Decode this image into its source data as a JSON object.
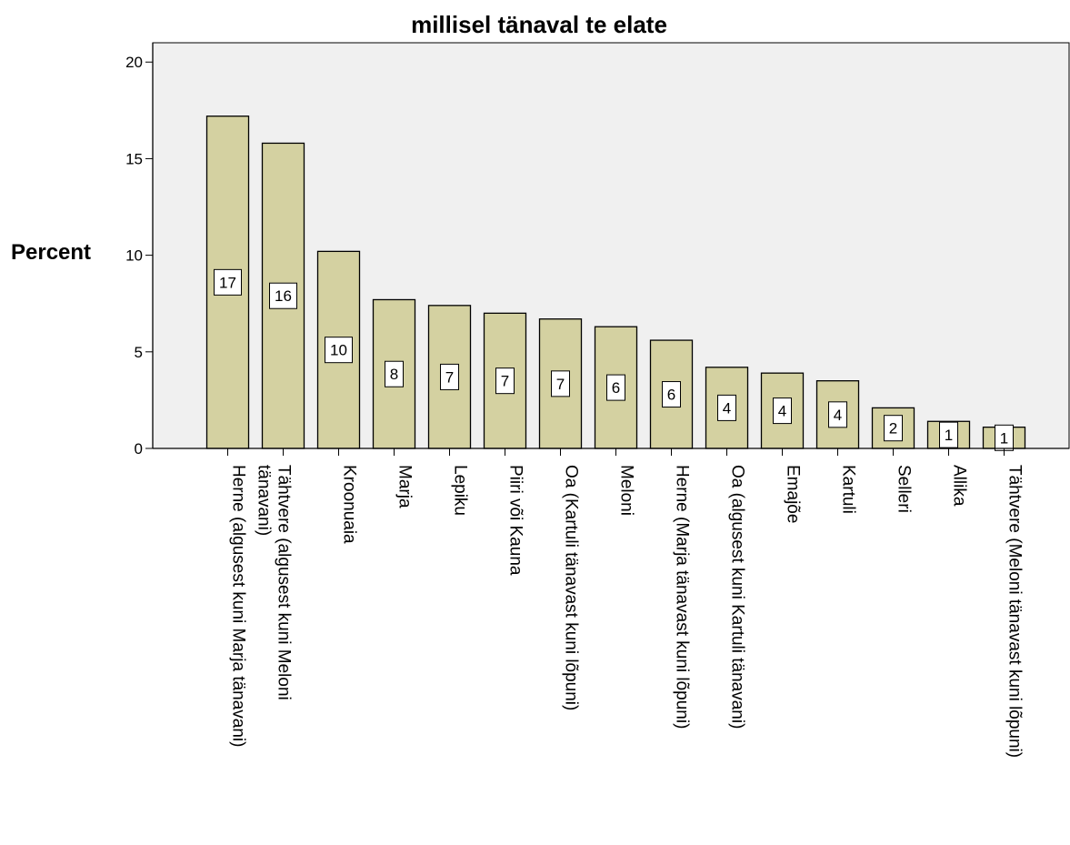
{
  "chart_data": {
    "type": "bar",
    "title": "millisel tänaval te elate",
    "xlabel": "",
    "ylabel": "Percent",
    "ylim": [
      0,
      21
    ],
    "yticks": [
      0,
      5,
      10,
      15,
      20
    ],
    "grid": false,
    "categories": [
      [
        "Herne (algusest kuni Marja tänavani)"
      ],
      [
        "Tähtvere (algusest kuni Meloni",
        "tänavani)"
      ],
      [
        "Kroonuaia"
      ],
      [
        "Marja"
      ],
      [
        "Lepiku"
      ],
      [
        "Piiri või Kauna"
      ],
      [
        "Oa (Kartuli tänavast kuni lõpuni)"
      ],
      [
        "Meloni"
      ],
      [
        "Herne (Marja tänavast kuni lõpuni)"
      ],
      [
        "Oa (algusest kuni Kartuli tänavani)"
      ],
      [
        "Emajõe"
      ],
      [
        "Kartuli"
      ],
      [
        "Selleri"
      ],
      [
        "Allika"
      ],
      [
        "Tähtvere (Meloni tänavast kuni lõpuni)"
      ]
    ],
    "values": [
      17.2,
      15.8,
      10.2,
      7.7,
      7.4,
      7.0,
      6.7,
      6.3,
      5.6,
      4.2,
      3.9,
      3.5,
      2.1,
      1.4,
      1.1
    ],
    "data_labels": [
      "17",
      "16",
      "10",
      "8",
      "7",
      "7",
      "7",
      "6",
      "6",
      "4",
      "4",
      "4",
      "2",
      "1",
      "1"
    ],
    "colors": {
      "bar_fill": "#d4d1a1",
      "bar_stroke": "#000000",
      "plot_background": "#f0f0f0",
      "label_box_fill": "#ffffff"
    }
  }
}
